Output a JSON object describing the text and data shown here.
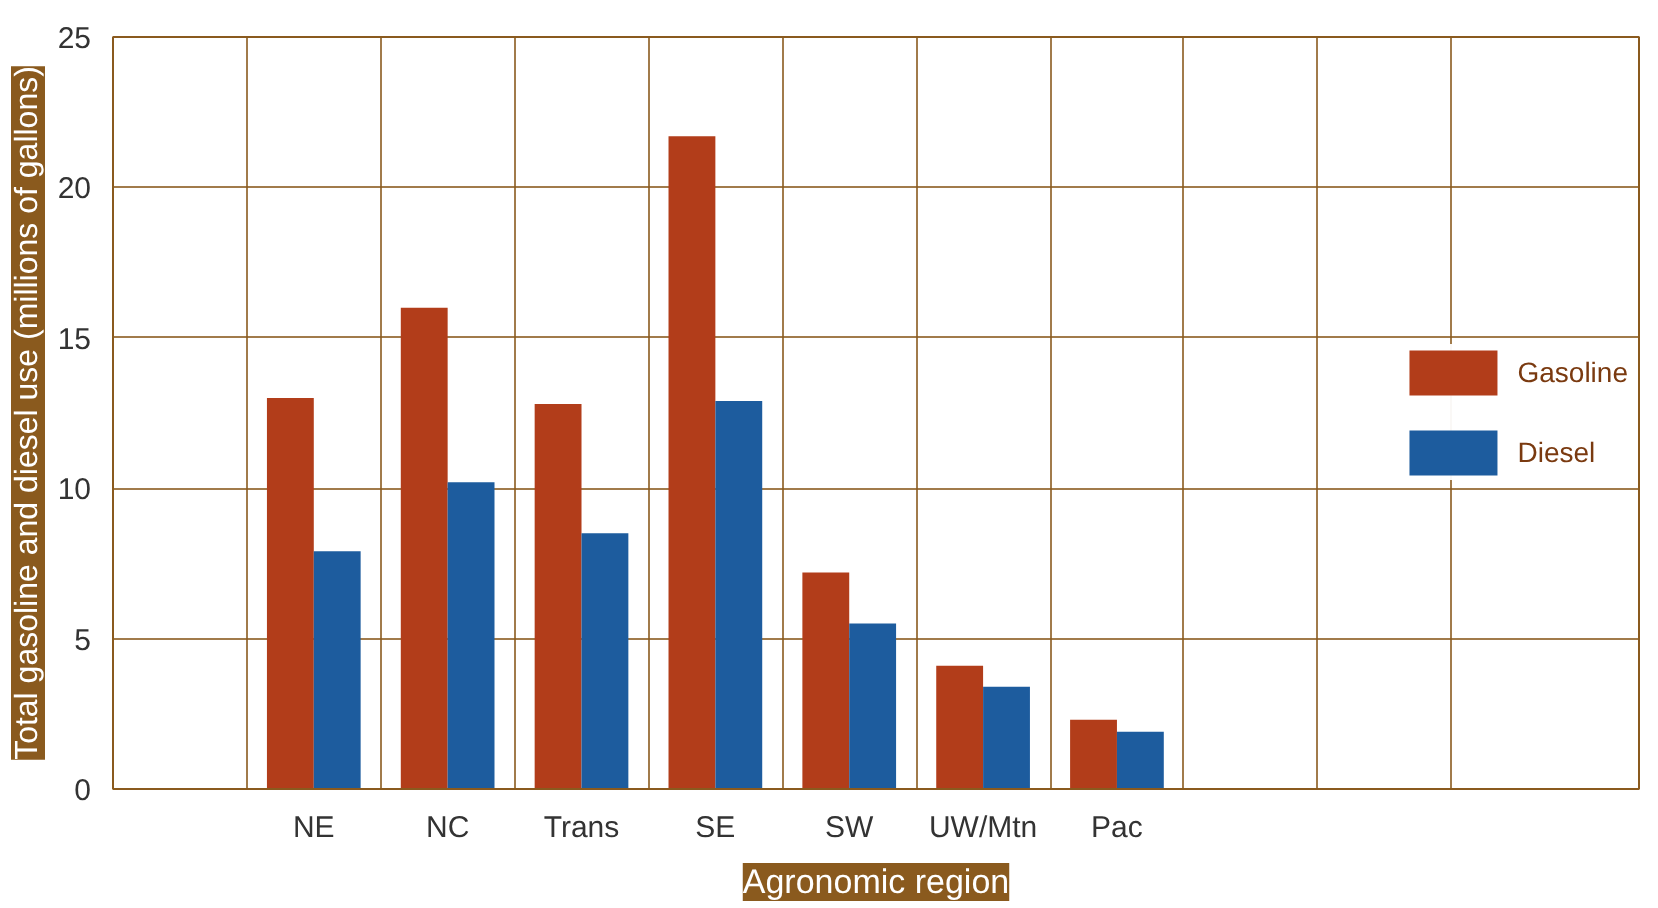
{
  "chart_data": {
    "type": "bar",
    "xlabel": "Agronomic region",
    "ylabel": "Total gasoline and diesel use (millions of gallons)",
    "categories": [
      null,
      "NE",
      "NC",
      "Trans",
      "SE",
      "SW",
      "UW/Mtn",
      "Pac",
      null
    ],
    "series": [
      {
        "name": "Gasoline",
        "color": "#b23d1a",
        "values": [
          null,
          13.0,
          16.0,
          12.8,
          21.7,
          7.2,
          4.1,
          2.3,
          null
        ]
      },
      {
        "name": "Diesel",
        "color": "#1d5c9e",
        "values": [
          null,
          7.9,
          10.2,
          8.5,
          12.9,
          5.5,
          3.4,
          1.9,
          null
        ]
      }
    ],
    "ylim": [
      0,
      25
    ],
    "yticks": [
      0,
      5,
      10,
      15,
      20,
      25
    ],
    "grid": true,
    "legend": "right"
  }
}
